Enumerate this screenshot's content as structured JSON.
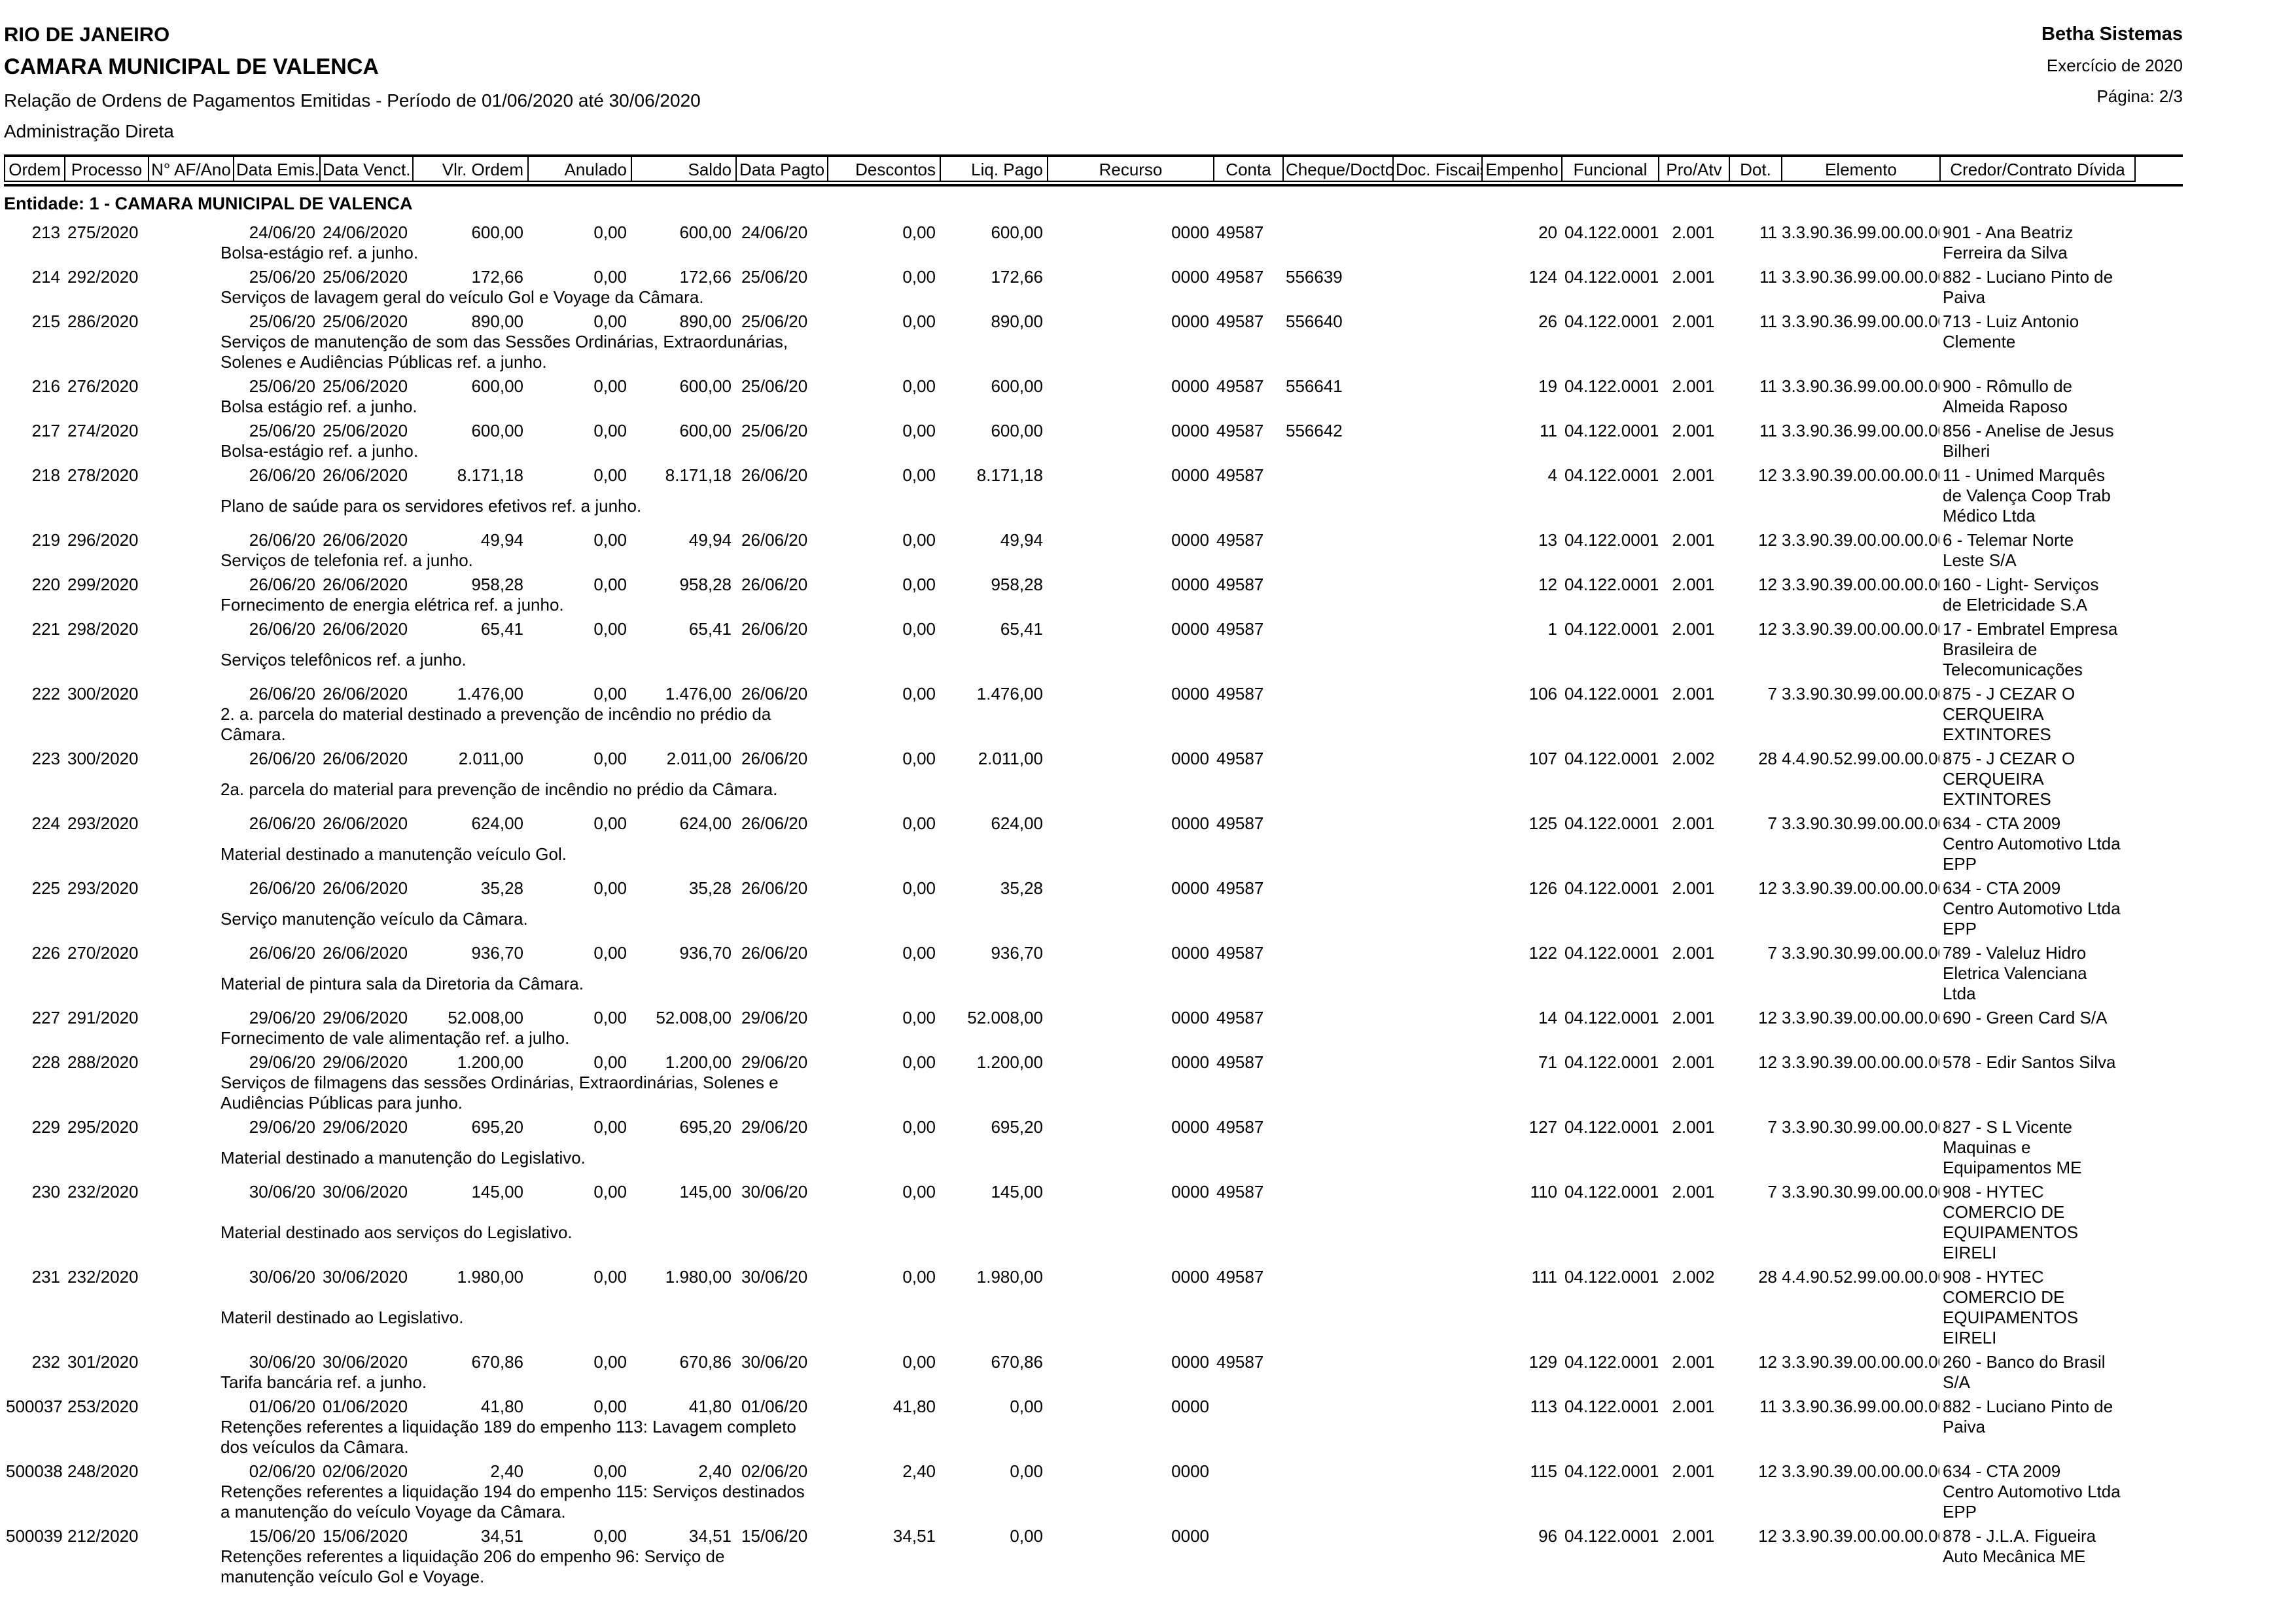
{
  "page": {
    "header": {
      "state": "RIO DE JANEIRO",
      "entity": "CAMARA MUNICIPAL DE VALENCA",
      "report_title": "Relação de Ordens de Pagamentos Emitidas - Período de 01/06/2020 até 30/06/2020",
      "admin_type": "Administração Direta",
      "vendor": "Betha Sistemas",
      "exercise": "Exercício de 2020",
      "page_info": "Página: 2/3"
    },
    "table": {
      "entity_line": "Entidade: 1 - CAMARA MUNICIPAL DE VALENCA",
      "columns": [
        "Ordem",
        "Processo",
        "N° AF/Ano",
        "Data Emis.",
        "Data Venct.",
        "Vlr. Ordem",
        "Anulado",
        "Saldo",
        "Data Pagto",
        "Descontos",
        "Liq. Pago",
        "Recurso",
        "Conta",
        "Cheque/Docto",
        "Doc. Fiscais",
        "Empenho",
        "Funcional",
        "Pro/Atv",
        "Dot.",
        "Elemento",
        "Credor/Contrato Dívida"
      ],
      "rows": [
        {
          "ordem": "213",
          "processo": "275/2020",
          "af": "",
          "emis": "24/06/20",
          "venct": "24/06/2020",
          "vlr": "600,00",
          "anulado": "0,00",
          "saldo": "600,00",
          "pagto": "24/06/20",
          "descontos": "0,00",
          "liq": "600,00",
          "recurso": "0000",
          "conta": "49587",
          "cheque": "",
          "fiscais": "",
          "empenho": "20",
          "funcional": "04.122.0001",
          "proatv": "2.001",
          "dot": "11",
          "elemento": "3.3.90.36.99.00.00.00",
          "credor": "901 - Ana Beatriz\nFerreira da Silva",
          "descricao": "Bolsa-estágio ref. a junho."
        },
        {
          "ordem": "214",
          "processo": "292/2020",
          "af": "",
          "emis": "25/06/20",
          "venct": "25/06/2020",
          "vlr": "172,66",
          "anulado": "0,00",
          "saldo": "172,66",
          "pagto": "25/06/20",
          "descontos": "0,00",
          "liq": "172,66",
          "recurso": "0000",
          "conta": "49587",
          "cheque": "556639",
          "fiscais": "",
          "empenho": "124",
          "funcional": "04.122.0001",
          "proatv": "2.001",
          "dot": "11",
          "elemento": "3.3.90.36.99.00.00.00",
          "credor": "882 - Luciano Pinto de\nPaiva",
          "descricao": "Serviços de lavagem geral do veículo Gol e Voyage da Câmara."
        },
        {
          "ordem": "215",
          "processo": "286/2020",
          "af": "",
          "emis": "25/06/20",
          "venct": "25/06/2020",
          "vlr": "890,00",
          "anulado": "0,00",
          "saldo": "890,00",
          "pagto": "25/06/20",
          "descontos": "0,00",
          "liq": "890,00",
          "recurso": "0000",
          "conta": "49587",
          "cheque": "556640",
          "fiscais": "",
          "empenho": "26",
          "funcional": "04.122.0001",
          "proatv": "2.001",
          "dot": "11",
          "elemento": "3.3.90.36.99.00.00.00",
          "credor": "713 - Luiz Antonio\nClemente",
          "descricao": "Serviços de manutenção de som das Sessões Ordinárias, Extraordunárias,\nSolenes e Audiências Públicas ref. a junho."
        },
        {
          "ordem": "216",
          "processo": "276/2020",
          "af": "",
          "emis": "25/06/20",
          "venct": "25/06/2020",
          "vlr": "600,00",
          "anulado": "0,00",
          "saldo": "600,00",
          "pagto": "25/06/20",
          "descontos": "0,00",
          "liq": "600,00",
          "recurso": "0000",
          "conta": "49587",
          "cheque": "556641",
          "fiscais": "",
          "empenho": "19",
          "funcional": "04.122.0001",
          "proatv": "2.001",
          "dot": "11",
          "elemento": "3.3.90.36.99.00.00.00",
          "credor": "900 - Rômullo de\nAlmeida Raposo",
          "descricao": "Bolsa estágio ref. a junho."
        },
        {
          "ordem": "217",
          "processo": "274/2020",
          "af": "",
          "emis": "25/06/20",
          "venct": "25/06/2020",
          "vlr": "600,00",
          "anulado": "0,00",
          "saldo": "600,00",
          "pagto": "25/06/20",
          "descontos": "0,00",
          "liq": "600,00",
          "recurso": "0000",
          "conta": "49587",
          "cheque": "556642",
          "fiscais": "",
          "empenho": "11",
          "funcional": "04.122.0001",
          "proatv": "2.001",
          "dot": "11",
          "elemento": "3.3.90.36.99.00.00.00",
          "credor": "856 - Anelise de Jesus\nBilheri",
          "descricao": "Bolsa-estágio ref. a junho."
        },
        {
          "ordem": "218",
          "processo": "278/2020",
          "af": "",
          "emis": "26/06/20",
          "venct": "26/06/2020",
          "vlr": "8.171,18",
          "anulado": "0,00",
          "saldo": "8.171,18",
          "pagto": "26/06/20",
          "descontos": "0,00",
          "liq": "8.171,18",
          "recurso": "0000",
          "conta": "49587",
          "cheque": "",
          "fiscais": "",
          "empenho": "4",
          "funcional": "04.122.0001",
          "proatv": "2.001",
          "dot": "12",
          "elemento": "3.3.90.39.00.00.00.00",
          "credor": "11 - Unimed Marquês\nde Valença Coop Trab\nMédico Ltda",
          "descricao": "Plano de saúde para os servidores efetivos ref. a junho."
        },
        {
          "ordem": "219",
          "processo": "296/2020",
          "af": "",
          "emis": "26/06/20",
          "venct": "26/06/2020",
          "vlr": "49,94",
          "anulado": "0,00",
          "saldo": "49,94",
          "pagto": "26/06/20",
          "descontos": "0,00",
          "liq": "49,94",
          "recurso": "0000",
          "conta": "49587",
          "cheque": "",
          "fiscais": "",
          "empenho": "13",
          "funcional": "04.122.0001",
          "proatv": "2.001",
          "dot": "12",
          "elemento": "3.3.90.39.00.00.00.00",
          "credor": "6 - Telemar Norte\nLeste S/A",
          "descricao": "Serviços de telefonia ref. a junho."
        },
        {
          "ordem": "220",
          "processo": "299/2020",
          "af": "",
          "emis": "26/06/20",
          "venct": "26/06/2020",
          "vlr": "958,28",
          "anulado": "0,00",
          "saldo": "958,28",
          "pagto": "26/06/20",
          "descontos": "0,00",
          "liq": "958,28",
          "recurso": "0000",
          "conta": "49587",
          "cheque": "",
          "fiscais": "",
          "empenho": "12",
          "funcional": "04.122.0001",
          "proatv": "2.001",
          "dot": "12",
          "elemento": "3.3.90.39.00.00.00.00",
          "credor": "160 - Light- Serviços\nde Eletricidade S.A",
          "descricao": "Fornecimento de energia elétrica ref. a junho."
        },
        {
          "ordem": "221",
          "processo": "298/2020",
          "af": "",
          "emis": "26/06/20",
          "venct": "26/06/2020",
          "vlr": "65,41",
          "anulado": "0,00",
          "saldo": "65,41",
          "pagto": "26/06/20",
          "descontos": "0,00",
          "liq": "65,41",
          "recurso": "0000",
          "conta": "49587",
          "cheque": "",
          "fiscais": "",
          "empenho": "1",
          "funcional": "04.122.0001",
          "proatv": "2.001",
          "dot": "12",
          "elemento": "3.3.90.39.00.00.00.00",
          "credor": "17 - Embratel Empresa\nBrasileira de\nTelecomunicações",
          "descricao": "Serviços telefônicos ref. a junho."
        },
        {
          "ordem": "222",
          "processo": "300/2020",
          "af": "",
          "emis": "26/06/20",
          "venct": "26/06/2020",
          "vlr": "1.476,00",
          "anulado": "0,00",
          "saldo": "1.476,00",
          "pagto": "26/06/20",
          "descontos": "0,00",
          "liq": "1.476,00",
          "recurso": "0000",
          "conta": "49587",
          "cheque": "",
          "fiscais": "",
          "empenho": "106",
          "funcional": "04.122.0001",
          "proatv": "2.001",
          "dot": "7",
          "elemento": "3.3.90.30.99.00.00.00",
          "credor": "875 - J CEZAR O\nCERQUEIRA\nEXTINTORES",
          "descricao": "2. a. parcela do material destinado a prevenção de incêndio no prédio da\nCâmara."
        },
        {
          "ordem": "223",
          "processo": "300/2020",
          "af": "",
          "emis": "26/06/20",
          "venct": "26/06/2020",
          "vlr": "2.011,00",
          "anulado": "0,00",
          "saldo": "2.011,00",
          "pagto": "26/06/20",
          "descontos": "0,00",
          "liq": "2.011,00",
          "recurso": "0000",
          "conta": "49587",
          "cheque": "",
          "fiscais": "",
          "empenho": "107",
          "funcional": "04.122.0001",
          "proatv": "2.002",
          "dot": "28",
          "elemento": "4.4.90.52.99.00.00.00",
          "credor": "875 - J CEZAR O\nCERQUEIRA\nEXTINTORES",
          "descricao": "2a. parcela do material para prevenção de incêndio no prédio da Câmara."
        },
        {
          "ordem": "224",
          "processo": "293/2020",
          "af": "",
          "emis": "26/06/20",
          "venct": "26/06/2020",
          "vlr": "624,00",
          "anulado": "0,00",
          "saldo": "624,00",
          "pagto": "26/06/20",
          "descontos": "0,00",
          "liq": "624,00",
          "recurso": "0000",
          "conta": "49587",
          "cheque": "",
          "fiscais": "",
          "empenho": "125",
          "funcional": "04.122.0001",
          "proatv": "2.001",
          "dot": "7",
          "elemento": "3.3.90.30.99.00.00.00",
          "credor": "634 - CTA 2009\nCentro Automotivo Ltda\nEPP",
          "descricao": "Material destinado a manutenção veículo Gol."
        },
        {
          "ordem": "225",
          "processo": "293/2020",
          "af": "",
          "emis": "26/06/20",
          "venct": "26/06/2020",
          "vlr": "35,28",
          "anulado": "0,00",
          "saldo": "35,28",
          "pagto": "26/06/20",
          "descontos": "0,00",
          "liq": "35,28",
          "recurso": "0000",
          "conta": "49587",
          "cheque": "",
          "fiscais": "",
          "empenho": "126",
          "funcional": "04.122.0001",
          "proatv": "2.001",
          "dot": "12",
          "elemento": "3.3.90.39.00.00.00.00",
          "credor": "634 - CTA 2009\nCentro Automotivo Ltda\nEPP",
          "descricao": "Serviço manutenção veículo da Câmara."
        },
        {
          "ordem": "226",
          "processo": "270/2020",
          "af": "",
          "emis": "26/06/20",
          "venct": "26/06/2020",
          "vlr": "936,70",
          "anulado": "0,00",
          "saldo": "936,70",
          "pagto": "26/06/20",
          "descontos": "0,00",
          "liq": "936,70",
          "recurso": "0000",
          "conta": "49587",
          "cheque": "",
          "fiscais": "",
          "empenho": "122",
          "funcional": "04.122.0001",
          "proatv": "2.001",
          "dot": "7",
          "elemento": "3.3.90.30.99.00.00.00",
          "credor": "789 - Valeluz Hidro\nEletrica Valenciana\nLtda",
          "descricao": "Material de pintura sala da Diretoria da Câmara."
        },
        {
          "ordem": "227",
          "processo": "291/2020",
          "af": "",
          "emis": "29/06/20",
          "venct": "29/06/2020",
          "vlr": "52.008,00",
          "anulado": "0,00",
          "saldo": "52.008,00",
          "pagto": "29/06/20",
          "descontos": "0,00",
          "liq": "52.008,00",
          "recurso": "0000",
          "conta": "49587",
          "cheque": "",
          "fiscais": "",
          "empenho": "14",
          "funcional": "04.122.0001",
          "proatv": "2.001",
          "dot": "12",
          "elemento": "3.3.90.39.00.00.00.00",
          "credor": "690 - Green Card S/A",
          "descricao": "Fornecimento de vale alimentação ref. a julho."
        },
        {
          "ordem": "228",
          "processo": "288/2020",
          "af": "",
          "emis": "29/06/20",
          "venct": "29/06/2020",
          "vlr": "1.200,00",
          "anulado": "0,00",
          "saldo": "1.200,00",
          "pagto": "29/06/20",
          "descontos": "0,00",
          "liq": "1.200,00",
          "recurso": "0000",
          "conta": "49587",
          "cheque": "",
          "fiscais": "",
          "empenho": "71",
          "funcional": "04.122.0001",
          "proatv": "2.001",
          "dot": "12",
          "elemento": "3.3.90.39.00.00.00.00",
          "credor": "578 - Edir Santos Silva",
          "descricao": "Serviços de filmagens das sessões Ordinárias, Extraordinárias, Solenes e\nAudiências Públicas para junho."
        },
        {
          "ordem": "229",
          "processo": "295/2020",
          "af": "",
          "emis": "29/06/20",
          "venct": "29/06/2020",
          "vlr": "695,20",
          "anulado": "0,00",
          "saldo": "695,20",
          "pagto": "29/06/20",
          "descontos": "0,00",
          "liq": "695,20",
          "recurso": "0000",
          "conta": "49587",
          "cheque": "",
          "fiscais": "",
          "empenho": "127",
          "funcional": "04.122.0001",
          "proatv": "2.001",
          "dot": "7",
          "elemento": "3.3.90.30.99.00.00.00",
          "credor": "827 - S L Vicente\nMaquinas e\nEquipamentos ME",
          "descricao": "Material destinado a manutenção do Legislativo."
        },
        {
          "ordem": "230",
          "processo": "232/2020",
          "af": "",
          "emis": "30/06/20",
          "venct": "30/06/2020",
          "vlr": "145,00",
          "anulado": "0,00",
          "saldo": "145,00",
          "pagto": "30/06/20",
          "descontos": "0,00",
          "liq": "145,00",
          "recurso": "0000",
          "conta": "49587",
          "cheque": "",
          "fiscais": "",
          "empenho": "110",
          "funcional": "04.122.0001",
          "proatv": "2.001",
          "dot": "7",
          "elemento": "3.3.90.30.99.00.00.00",
          "credor": "908 - HYTEC\nCOMERCIO DE\nEQUIPAMENTOS\nEIRELI",
          "descricao": "Material destinado aos serviços do Legislativo."
        },
        {
          "ordem": "231",
          "processo": "232/2020",
          "af": "",
          "emis": "30/06/20",
          "venct": "30/06/2020",
          "vlr": "1.980,00",
          "anulado": "0,00",
          "saldo": "1.980,00",
          "pagto": "30/06/20",
          "descontos": "0,00",
          "liq": "1.980,00",
          "recurso": "0000",
          "conta": "49587",
          "cheque": "",
          "fiscais": "",
          "empenho": "111",
          "funcional": "04.122.0001",
          "proatv": "2.002",
          "dot": "28",
          "elemento": "4.4.90.52.99.00.00.00",
          "credor": "908 - HYTEC\nCOMERCIO DE\nEQUIPAMENTOS\nEIRELI",
          "descricao": "Materil destinado ao Legislativo."
        },
        {
          "ordem": "232",
          "processo": "301/2020",
          "af": "",
          "emis": "30/06/20",
          "venct": "30/06/2020",
          "vlr": "670,86",
          "anulado": "0,00",
          "saldo": "670,86",
          "pagto": "30/06/20",
          "descontos": "0,00",
          "liq": "670,86",
          "recurso": "0000",
          "conta": "49587",
          "cheque": "",
          "fiscais": "",
          "empenho": "129",
          "funcional": "04.122.0001",
          "proatv": "2.001",
          "dot": "12",
          "elemento": "3.3.90.39.00.00.00.00",
          "credor": "260 - Banco do Brasil\nS/A",
          "descricao": "Tarifa bancária ref. a junho."
        },
        {
          "ordem": "500037",
          "processo": "253/2020",
          "af": "",
          "emis": "01/06/20",
          "venct": "01/06/2020",
          "vlr": "41,80",
          "anulado": "0,00",
          "saldo": "41,80",
          "pagto": "01/06/20",
          "descontos": "41,80",
          "liq": "0,00",
          "recurso": "0000",
          "conta": "",
          "cheque": "",
          "fiscais": "",
          "empenho": "113",
          "funcional": "04.122.0001",
          "proatv": "2.001",
          "dot": "11",
          "elemento": "3.3.90.36.99.00.00.00",
          "credor": "882 - Luciano Pinto de\nPaiva",
          "descricao": "Retenções referentes a liquidação 189 do empenho 113: Lavagem completo\ndos veículos da Câmara."
        },
        {
          "ordem": "500038",
          "processo": "248/2020",
          "af": "",
          "emis": "02/06/20",
          "venct": "02/06/2020",
          "vlr": "2,40",
          "anulado": "0,00",
          "saldo": "2,40",
          "pagto": "02/06/20",
          "descontos": "2,40",
          "liq": "0,00",
          "recurso": "0000",
          "conta": "",
          "cheque": "",
          "fiscais": "",
          "empenho": "115",
          "funcional": "04.122.0001",
          "proatv": "2.001",
          "dot": "12",
          "elemento": "3.3.90.39.00.00.00.00",
          "credor": "634 - CTA 2009\nCentro Automotivo Ltda\nEPP",
          "descricao": "Retenções referentes a liquidação 194 do empenho 115: Serviços destinados\na manutenção do veículo Voyage da Câmara."
        },
        {
          "ordem": "500039",
          "processo": "212/2020",
          "af": "",
          "emis": "15/06/20",
          "venct": "15/06/2020",
          "vlr": "34,51",
          "anulado": "0,00",
          "saldo": "34,51",
          "pagto": "15/06/20",
          "descontos": "34,51",
          "liq": "0,00",
          "recurso": "0000",
          "conta": "",
          "cheque": "",
          "fiscais": "",
          "empenho": "96",
          "funcional": "04.122.0001",
          "proatv": "2.001",
          "dot": "12",
          "elemento": "3.3.90.39.00.00.00.00",
          "credor": "878 - J.L.A. Figueira\nAuto Mecânica ME",
          "descricao": "Retenções referentes a liquidação 206 do empenho 96: Serviço de\nmanutenção veículo Gol e Voyage."
        }
      ]
    }
  }
}
